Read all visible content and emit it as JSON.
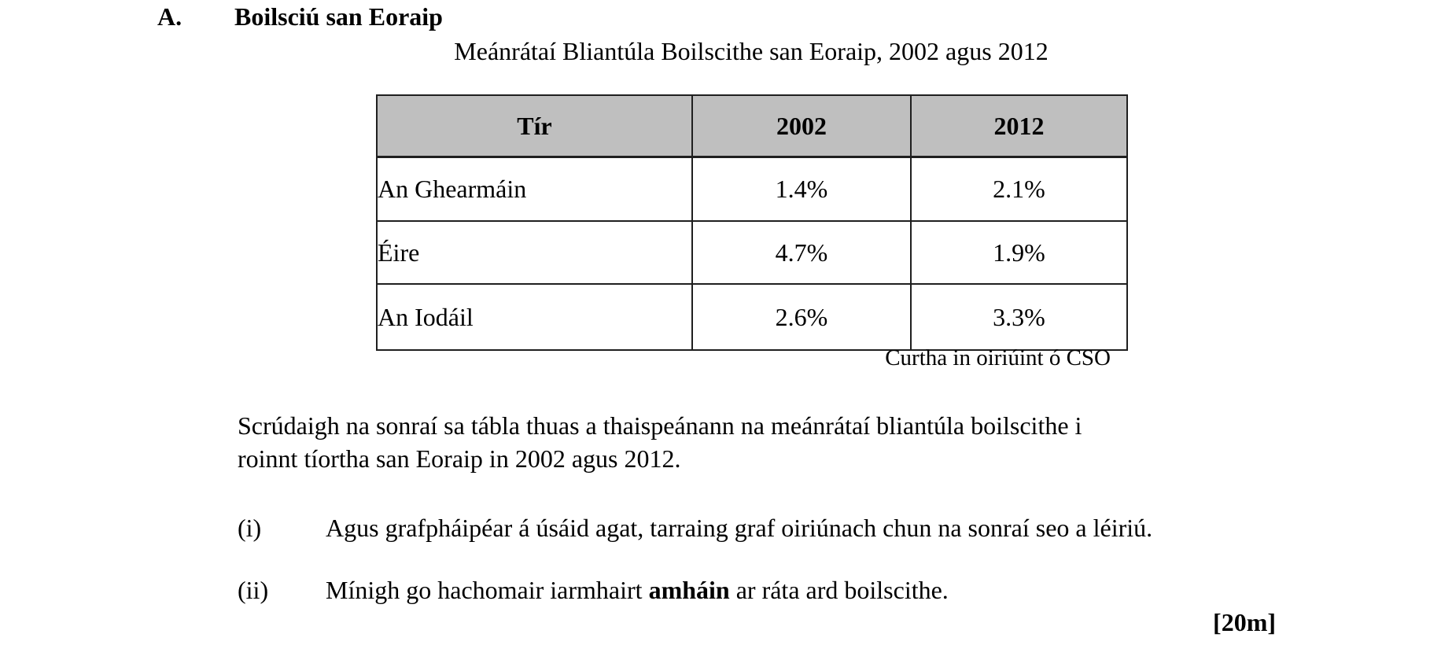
{
  "page": {
    "section_label": "A.",
    "section_heading": "Boilsciú san Eoraip",
    "marks": "[20m]"
  },
  "table": {
    "title": "Meánrátaí Bliantúla Boilscithe san Eoraip, 2002 agus 2012",
    "columns": [
      "Tír",
      "2002",
      "2012"
    ],
    "rows": [
      {
        "country": "An Ghearmáin",
        "rate_2002": "1.4%",
        "rate_2012": "2.1%"
      },
      {
        "country": "Éire",
        "rate_2002": "4.7%",
        "rate_2012": "1.9%"
      },
      {
        "country": "An Iodáil",
        "rate_2002": "2.6%",
        "rate_2012": "3.3%"
      }
    ],
    "source_note": "Curtha in oiriúint ó CSO",
    "header_bg": "#bfbfbf",
    "border_color": "#1f1f1f"
  },
  "body": {
    "paragraph_lines": [
      "Scrúdaigh na sonraí sa tábla thuas a thaispeánann na meánrátaí bliantúla boilscithe i",
      "roinnt tíortha san Eoraip in 2002 agus 2012."
    ],
    "items": [
      {
        "label": "(i)",
        "text": "Agus grafpháipéar á úsáid agat, tarraing graf oiriúnach chun na sonraí seo a léiriú."
      },
      {
        "label": "(ii)",
        "text_prefix": "Mínigh go hachomair iarmhairt ",
        "text_bold": "amháin",
        "text_suffix": " ar ráta ard boilscithe."
      }
    ]
  }
}
